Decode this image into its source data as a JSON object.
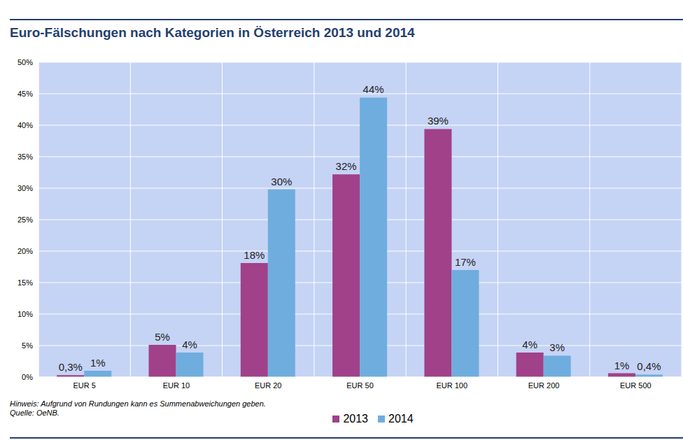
{
  "chart_data": {
    "type": "bar",
    "title": "Euro-Fälschungen nach Kategorien in Österreich 2013 und 2014",
    "categories": [
      "EUR 5",
      "EUR 10",
      "EUR 20",
      "EUR 50",
      "EUR 100",
      "EUR 200",
      "EUR 500"
    ],
    "series": [
      {
        "name": "2013",
        "color": "#a0418a",
        "values": [
          0.3,
          5.1,
          18.1,
          32.2,
          39.4,
          3.9,
          0.6
        ],
        "value_labels": [
          "0,3%",
          "5%",
          "18%",
          "32%",
          "39%",
          "4%",
          "1%"
        ]
      },
      {
        "name": "2014",
        "color": "#6fadde",
        "values": [
          1.0,
          3.9,
          29.8,
          44.4,
          17.0,
          3.4,
          0.4
        ],
        "value_labels": [
          "1%",
          "4%",
          "30%",
          "44%",
          "17%",
          "3%",
          "0,4%"
        ]
      }
    ],
    "ylim": [
      0,
      50
    ],
    "yticks": [
      {
        "value": 0,
        "label": "0%"
      },
      {
        "value": 5,
        "label": "5%"
      },
      {
        "value": 10,
        "label": "10%"
      },
      {
        "value": 15,
        "label": "15%"
      },
      {
        "value": 20,
        "label": "20%"
      },
      {
        "value": 25,
        "label": "25%"
      },
      {
        "value": 30,
        "label": "30%"
      },
      {
        "value": 35,
        "label": "35%"
      },
      {
        "value": 40,
        "label": "40%"
      },
      {
        "value": 45,
        "label": "45%"
      },
      {
        "value": 50,
        "label": "50%"
      }
    ],
    "grid": true,
    "legend": "bottom",
    "data_labels": true,
    "annotations": [
      "Hinweis: Aufgrund von Rundungen kann es Summenabweichungen geben.",
      "Quelle: OeNB."
    ]
  }
}
